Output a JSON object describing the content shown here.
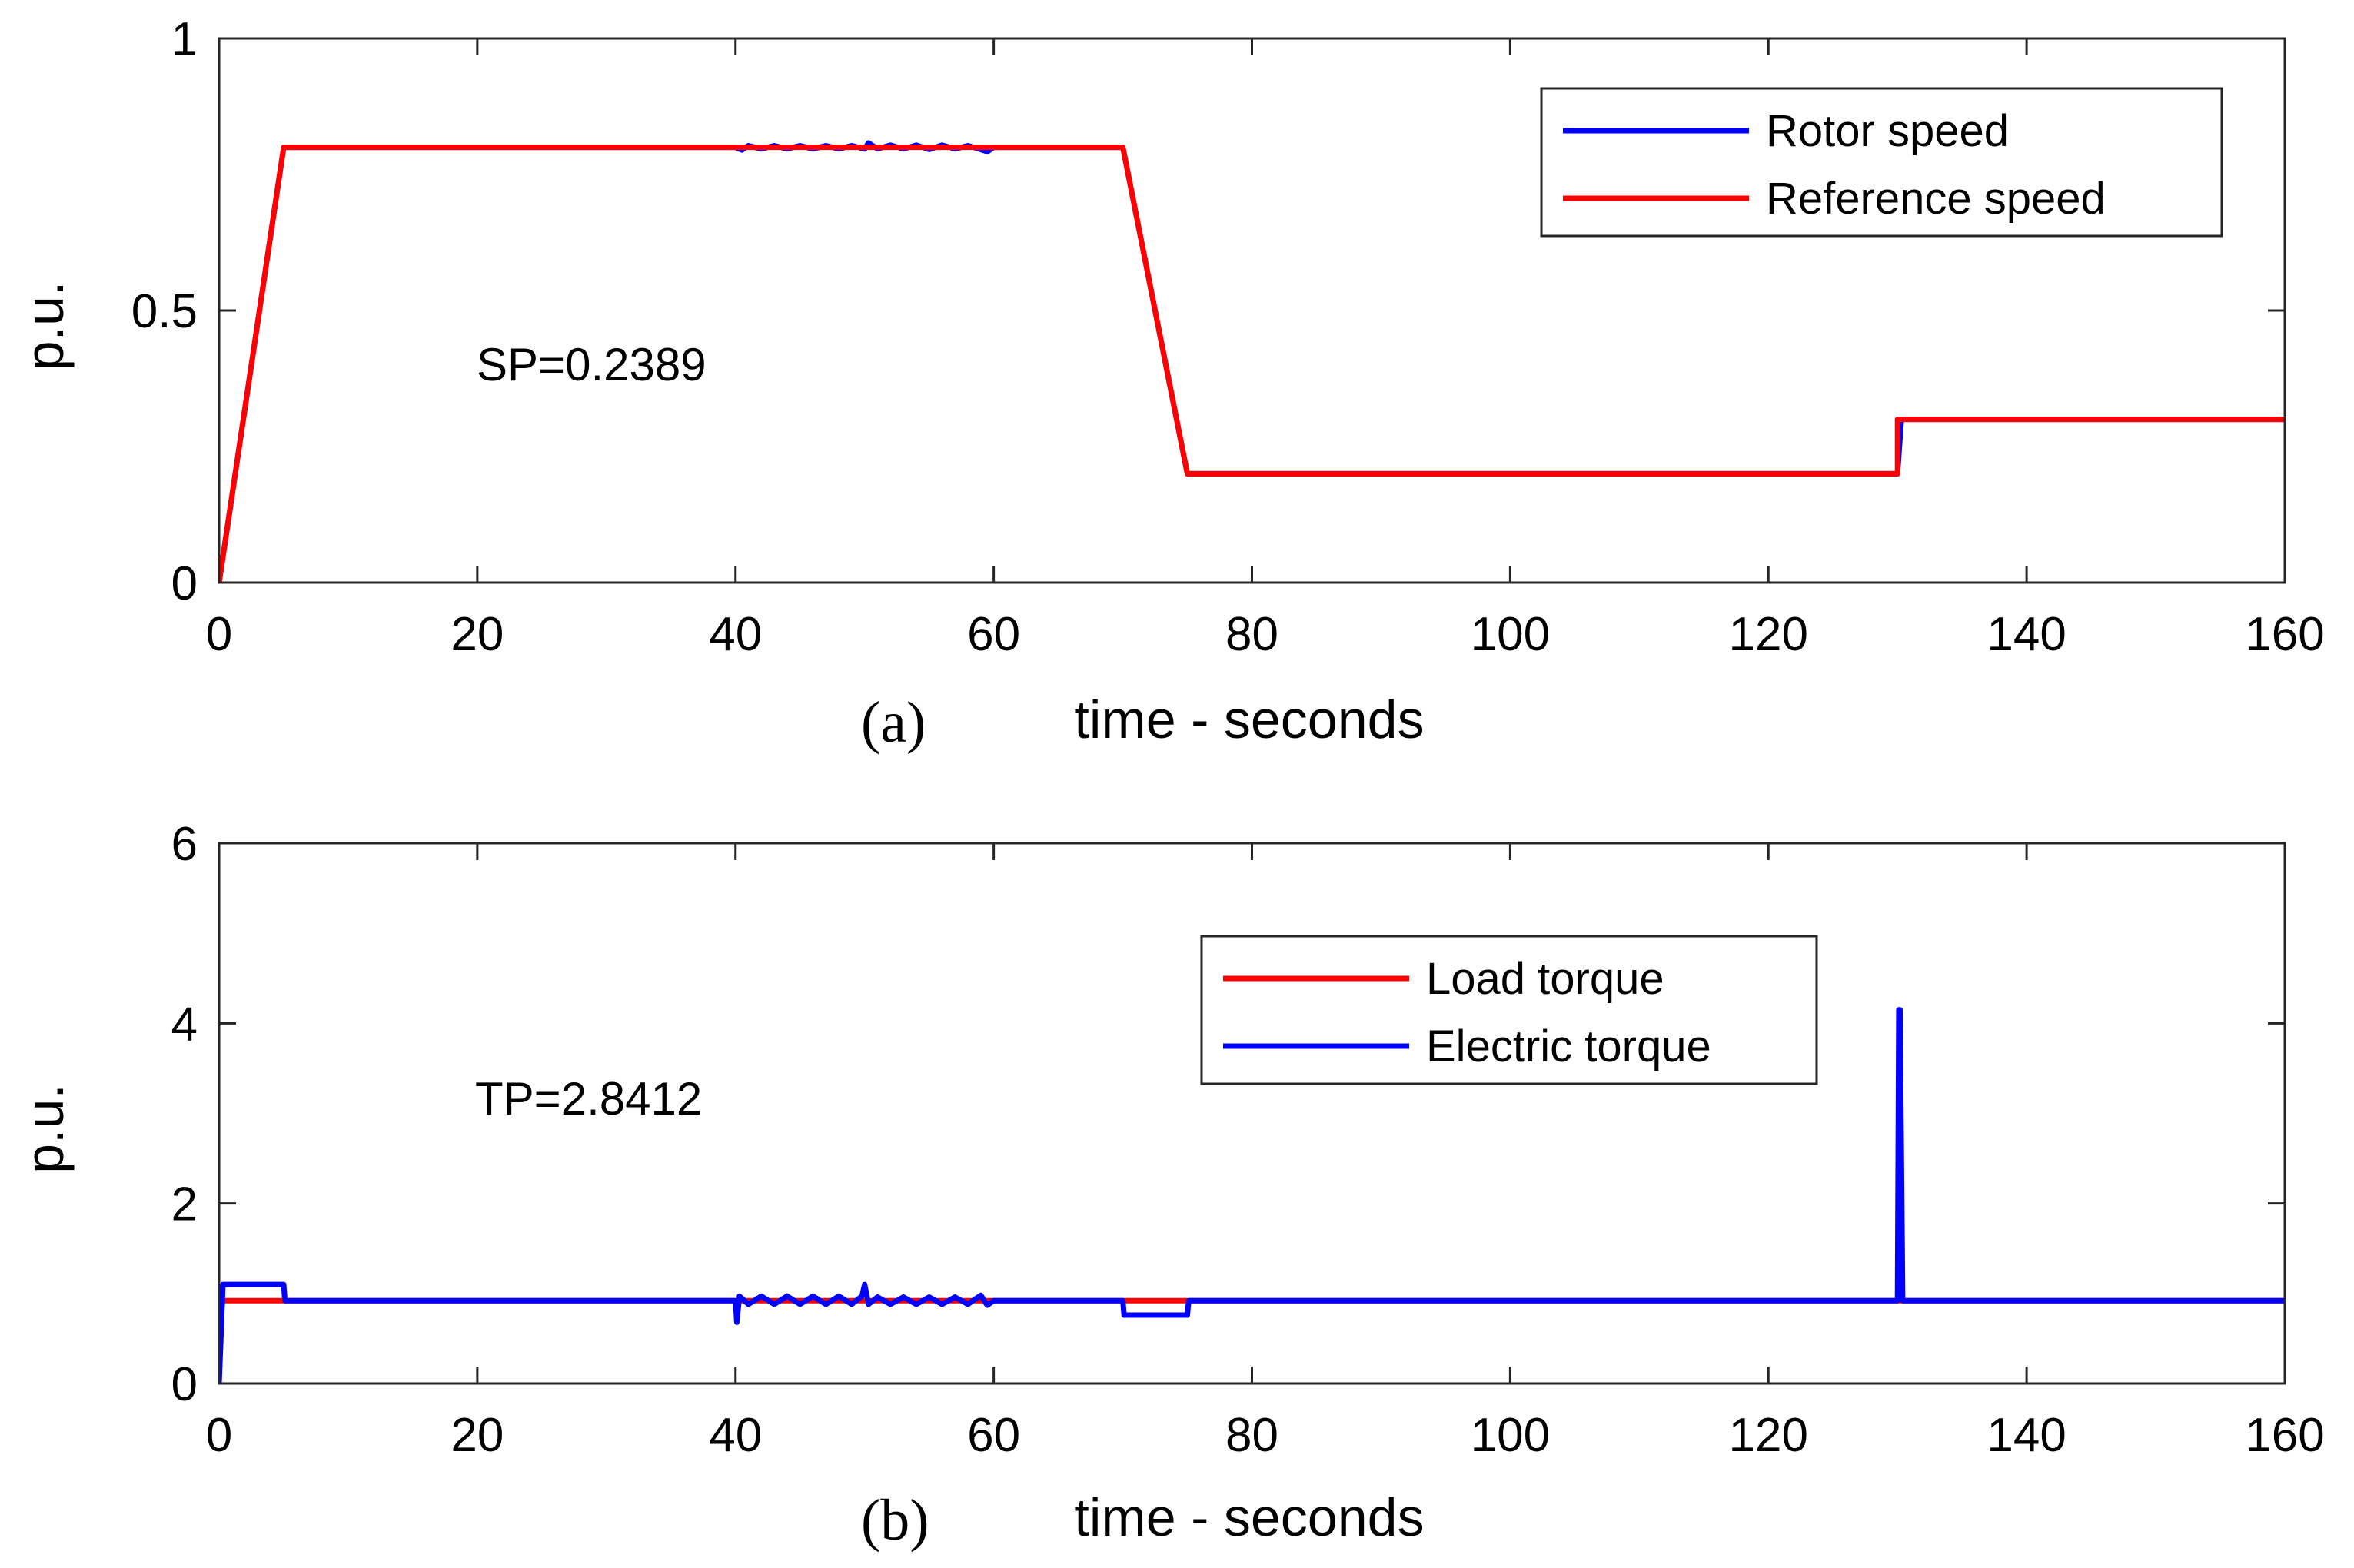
{
  "chart_data": [
    {
      "type": "line",
      "panel_label": "(a)",
      "xlabel": "time - seconds",
      "ylabel": "p.u.",
      "xlim": [
        0,
        160
      ],
      "ylim": [
        0,
        1
      ],
      "xticks": [
        0,
        20,
        40,
        60,
        80,
        100,
        120,
        140,
        160
      ],
      "yticks": [
        0,
        0.5,
        1
      ],
      "ytick_labels": [
        "0",
        "0.5",
        "1"
      ],
      "annotation": "SP=0.2389",
      "legend_position": "top-right",
      "series": [
        {
          "name": "Rotor speed",
          "color": "#0000ff",
          "x": [
            0,
            5,
            40,
            40.5,
            41,
            42,
            43,
            44,
            45,
            46,
            47,
            48,
            49,
            50,
            50.3,
            51,
            52,
            53,
            54,
            55,
            56,
            57,
            58,
            59,
            59.5,
            60,
            70,
            75,
            80,
            90,
            100,
            110,
            120,
            130,
            130.3,
            140,
            150,
            160
          ],
          "y": [
            0,
            0.8,
            0.8,
            0.795,
            0.803,
            0.797,
            0.803,
            0.797,
            0.803,
            0.797,
            0.803,
            0.797,
            0.803,
            0.797,
            0.808,
            0.797,
            0.804,
            0.797,
            0.804,
            0.796,
            0.804,
            0.797,
            0.803,
            0.796,
            0.792,
            0.8,
            0.8,
            0.2,
            0.2,
            0.2,
            0.2,
            0.2,
            0.2,
            0.2,
            0.3,
            0.3,
            0.3,
            0.3
          ]
        },
        {
          "name": "Reference speed",
          "color": "#ff0000",
          "x": [
            0,
            5,
            70,
            75,
            130,
            130,
            160
          ],
          "y": [
            0,
            0.8,
            0.8,
            0.2,
            0.2,
            0.3,
            0.3
          ]
        }
      ]
    },
    {
      "type": "line",
      "panel_label": "(b)",
      "xlabel": "time - seconds",
      "ylabel": "p.u.",
      "xlim": [
        0,
        160
      ],
      "ylim": [
        0,
        6
      ],
      "xticks": [
        0,
        20,
        40,
        60,
        80,
        100,
        120,
        140,
        160
      ],
      "yticks": [
        0,
        2,
        4,
        6
      ],
      "ytick_labels": [
        "0",
        "2",
        "4",
        "6"
      ],
      "annotation": "TP=2.8412",
      "legend_position": "top-right",
      "series": [
        {
          "name": "Load torque",
          "color": "#ff0000",
          "x": [
            0,
            160
          ],
          "y": [
            0.92,
            0.92
          ]
        },
        {
          "name": "Electric torque",
          "color": "#0000ff",
          "x": [
            0,
            0.3,
            0.4,
            5,
            5.1,
            40,
            40.1,
            40.3,
            41,
            42,
            43,
            44,
            45,
            46,
            47,
            48,
            49,
            49.8,
            50,
            50.3,
            51,
            52,
            53,
            54,
            55,
            56,
            57,
            58,
            59,
            59.5,
            60,
            70,
            70.1,
            75,
            75.1,
            130,
            130.1,
            130.2,
            130.4,
            160
          ],
          "y": [
            0,
            1.1,
            1.1,
            1.1,
            0.92,
            0.92,
            0.68,
            0.97,
            0.88,
            0.97,
            0.88,
            0.97,
            0.88,
            0.97,
            0.88,
            0.97,
            0.88,
            0.97,
            1.1,
            0.88,
            0.96,
            0.88,
            0.96,
            0.88,
            0.96,
            0.88,
            0.96,
            0.88,
            0.98,
            0.87,
            0.92,
            0.92,
            0.76,
            0.76,
            0.92,
            0.92,
            4.15,
            4.15,
            0.92,
            0.92
          ]
        }
      ]
    }
  ]
}
